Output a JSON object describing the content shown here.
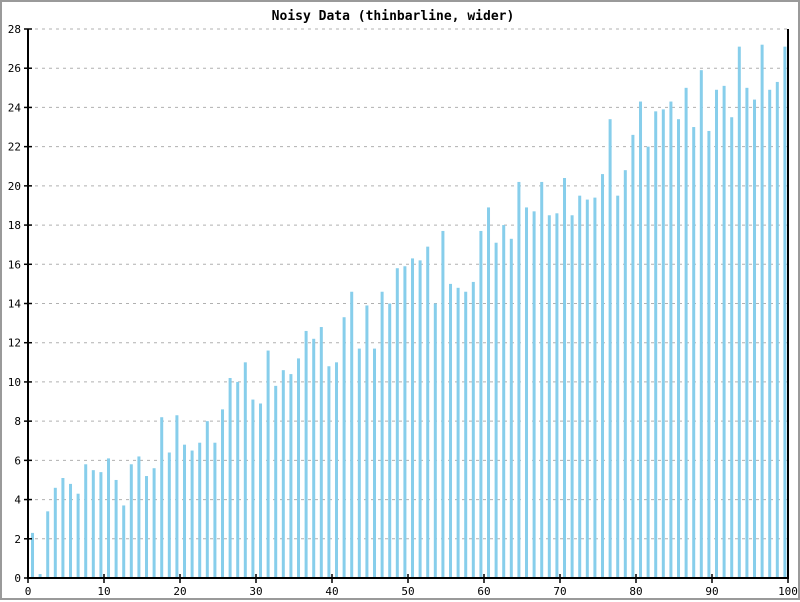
{
  "chart_data": {
    "type": "bar",
    "title": "Noisy Data (thinbarline, wider)",
    "xlabel": "",
    "ylabel": "",
    "xlim": [
      0,
      100
    ],
    "ylim": [
      0,
      28
    ],
    "xticks": [
      0,
      10,
      20,
      30,
      40,
      50,
      60,
      70,
      80,
      90,
      100
    ],
    "yticks": [
      0,
      2,
      4,
      6,
      8,
      10,
      12,
      14,
      16,
      18,
      20,
      22,
      24,
      26,
      28
    ],
    "grid": "horizontal-dashed",
    "legend": "none",
    "bar_color": "#87CEEB",
    "axis_color": "#000000",
    "grid_color": "#b0b0b0",
    "background_color": "#ffffff",
    "x": [
      0,
      1,
      2,
      3,
      4,
      5,
      6,
      7,
      8,
      9,
      10,
      11,
      12,
      13,
      14,
      15,
      16,
      17,
      18,
      19,
      20,
      21,
      22,
      23,
      24,
      25,
      26,
      27,
      28,
      29,
      30,
      31,
      32,
      33,
      34,
      35,
      36,
      37,
      38,
      39,
      40,
      41,
      42,
      43,
      44,
      45,
      46,
      47,
      48,
      49,
      50,
      51,
      52,
      53,
      54,
      55,
      56,
      57,
      58,
      59,
      60,
      61,
      62,
      63,
      64,
      65,
      66,
      67,
      68,
      69,
      70,
      71,
      72,
      73,
      74,
      75,
      76,
      77,
      78,
      79,
      80,
      81,
      82,
      83,
      84,
      85,
      86,
      87,
      88,
      89,
      90,
      91,
      92,
      93,
      94,
      95,
      96,
      97,
      98,
      99
    ],
    "values": [
      2.3,
      0.2,
      3.4,
      4.6,
      5.1,
      4.8,
      4.3,
      5.8,
      5.5,
      5.4,
      6.1,
      5.0,
      3.7,
      5.8,
      6.2,
      5.2,
      5.6,
      8.2,
      6.4,
      8.3,
      6.8,
      6.5,
      6.9,
      8.0,
      6.9,
      8.6,
      10.2,
      10.0,
      11.0,
      9.1,
      8.9,
      11.6,
      9.8,
      10.6,
      10.4,
      11.2,
      12.6,
      12.2,
      12.8,
      10.8,
      11.0,
      13.3,
      14.6,
      11.7,
      13.9,
      11.7,
      14.6,
      14.0,
      15.8,
      15.9,
      16.3,
      16.2,
      16.9,
      14.0,
      17.7,
      15.0,
      14.8,
      14.6,
      15.1,
      17.7,
      18.9,
      17.1,
      18.0,
      17.3,
      20.2,
      18.9,
      18.7,
      20.2,
      18.5,
      18.6,
      20.4,
      18.5,
      19.5,
      19.3,
      19.4,
      20.6,
      23.4,
      19.5,
      20.8,
      22.6,
      24.3,
      22.0,
      23.8,
      23.9,
      24.3,
      23.4,
      25.0,
      23.0,
      25.9,
      22.8,
      24.9,
      25.1,
      23.5,
      27.1,
      25.0,
      24.4,
      27.2,
      24.9,
      25.3,
      27.1
    ]
  }
}
